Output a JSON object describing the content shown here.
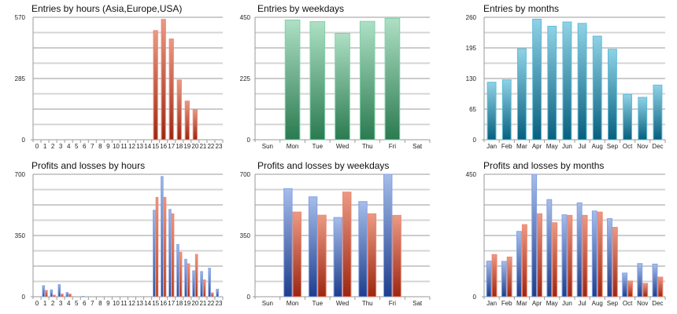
{
  "colors": {
    "red": {
      "top": "#eb9a84",
      "bottom": "#9c2610",
      "stroke": "#f08670"
    },
    "blue": {
      "top": "#a6bdea",
      "bottom": "#1e3d8c",
      "stroke": "#84a2e2"
    },
    "green": {
      "top": "#aee0c5",
      "bottom": "#2a7a50",
      "stroke": "#82d2a8"
    },
    "teal": {
      "top": "#90d2e6",
      "bottom": "#075f7e",
      "stroke": "#5dbdd9"
    }
  },
  "chart_data": [
    {
      "id": "entries-hours",
      "type": "bar",
      "title": "Entries by hours (Asia,Europe,USA)",
      "xlabel": "",
      "ylabel": "",
      "ylim": [
        0,
        570
      ],
      "yticks": [
        "0",
        "285",
        "570"
      ],
      "grid": true,
      "categories": [
        "0",
        "1",
        "2",
        "3",
        "4",
        "5",
        "6",
        "7",
        "8",
        "9",
        "10",
        "11",
        "12",
        "13",
        "14",
        "15",
        "16",
        "17",
        "18",
        "19",
        "20",
        "21",
        "22",
        "23"
      ],
      "series": [
        {
          "name": "Entries",
          "color": "red",
          "values": [
            0,
            0,
            0,
            0,
            0,
            0,
            0,
            0,
            0,
            0,
            0,
            0,
            0,
            0,
            0,
            508,
            560,
            469,
            278,
            180,
            140,
            0,
            0,
            0
          ]
        }
      ]
    },
    {
      "id": "entries-weekdays",
      "type": "bar",
      "title": "Entries by weekdays",
      "xlabel": "",
      "ylabel": "",
      "ylim": [
        0,
        450
      ],
      "yticks": [
        "0",
        "225",
        "450"
      ],
      "grid": true,
      "categories": [
        "Sun",
        "Mon",
        "Tue",
        "Wed",
        "Thu",
        "Fri",
        "Sat"
      ],
      "series": [
        {
          "name": "Entries",
          "color": "green",
          "values": [
            0,
            440,
            434,
            391,
            435,
            446,
            0
          ]
        }
      ]
    },
    {
      "id": "entries-months",
      "type": "bar",
      "title": "Entries by months",
      "xlabel": "",
      "ylabel": "",
      "ylim": [
        0,
        260
      ],
      "yticks": [
        "0",
        "65",
        "130",
        "195",
        "260"
      ],
      "grid": true,
      "categories": [
        "Jan",
        "Feb",
        "Mar",
        "Apr",
        "May",
        "Jun",
        "Jul",
        "Aug",
        "Sep",
        "Oct",
        "Nov",
        "Dec"
      ],
      "series": [
        {
          "name": "Entries",
          "color": "teal",
          "values": [
            122,
            127,
            193,
            256,
            241,
            250,
            247,
            220,
            192,
            96,
            90,
            116
          ]
        }
      ]
    },
    {
      "id": "pl-hours",
      "type": "bar",
      "title": "Profits and losses by hours",
      "xlabel": "",
      "ylabel": "",
      "ylim": [
        0,
        700
      ],
      "yticks": [
        "0",
        "350",
        "700"
      ],
      "grid": true,
      "categories": [
        "0",
        "1",
        "2",
        "3",
        "4",
        "5",
        "6",
        "7",
        "8",
        "9",
        "10",
        "11",
        "12",
        "13",
        "14",
        "15",
        "16",
        "17",
        "18",
        "19",
        "20",
        "21",
        "22",
        "23"
      ],
      "series": [
        {
          "name": "Profits",
          "color": "blue",
          "values": [
            0,
            63,
            39,
            69,
            24,
            0,
            2,
            0,
            0,
            0,
            0,
            0,
            0,
            0,
            0,
            494,
            687,
            499,
            299,
            214,
            148,
            144,
            163,
            43
          ]
        },
        {
          "name": "Losses",
          "color": "red",
          "values": [
            0,
            36,
            9,
            15,
            15,
            0,
            0,
            0,
            0,
            0,
            0,
            0,
            0,
            0,
            0,
            568,
            568,
            474,
            254,
            188,
            242,
            96,
            22,
            0
          ]
        }
      ]
    },
    {
      "id": "pl-weekdays",
      "type": "bar",
      "title": "Profits and losses by weekdays",
      "xlabel": "",
      "ylabel": "",
      "ylim": [
        0,
        700
      ],
      "yticks": [
        "0",
        "350",
        "700"
      ],
      "grid": true,
      "categories": [
        "Sun",
        "Mon",
        "Tue",
        "Wed",
        "Thu",
        "Fri",
        "Sat"
      ],
      "series": [
        {
          "name": "Profits",
          "color": "blue",
          "values": [
            0,
            618,
            571,
            453,
            544,
            700,
            0
          ]
        },
        {
          "name": "Losses",
          "color": "red",
          "values": [
            0,
            484,
            466,
            598,
            474,
            465,
            0
          ]
        }
      ]
    },
    {
      "id": "pl-months",
      "type": "bar",
      "title": "Profits and losses by months",
      "xlabel": "",
      "ylabel": "",
      "ylim": [
        0,
        450
      ],
      "yticks": [
        "0",
        "450"
      ],
      "grid": true,
      "categories": [
        "Jan",
        "Feb",
        "Mar",
        "Apr",
        "May",
        "Jun",
        "Jul",
        "Aug",
        "Sep",
        "Oct",
        "Nov",
        "Dec"
      ],
      "series": [
        {
          "name": "Profits",
          "color": "blue",
          "values": [
            131,
            130,
            240,
            450,
            357,
            301,
            345,
            315,
            287,
            87,
            122,
            120
          ]
        },
        {
          "name": "Losses",
          "color": "red",
          "values": [
            155,
            146,
            265,
            305,
            272,
            299,
            299,
            311,
            255,
            58,
            49,
            72
          ]
        }
      ]
    }
  ]
}
